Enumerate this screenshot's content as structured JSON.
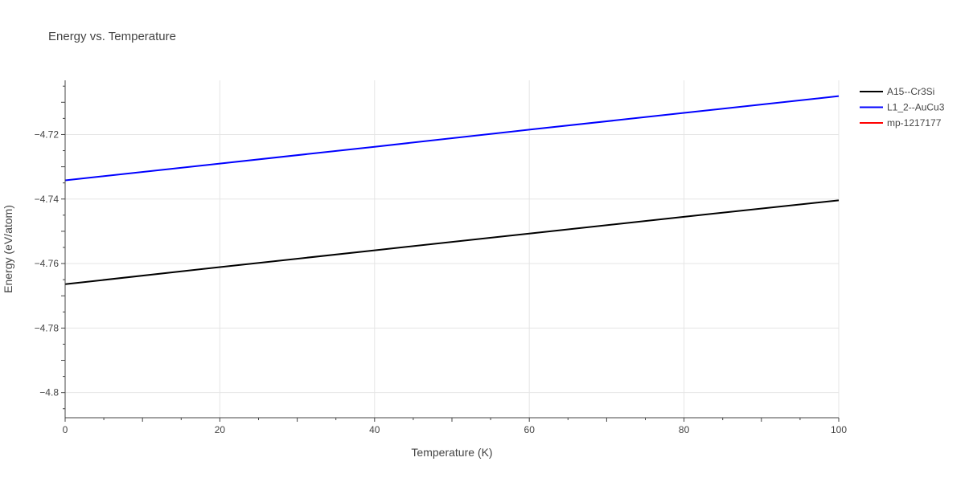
{
  "chart_data": {
    "type": "line",
    "title": "Energy vs. Temperature",
    "xlabel": "Temperature (K)",
    "ylabel": "Energy (eV/atom)",
    "xlim": [
      0,
      100
    ],
    "ylim": [
      -4.8078,
      -4.7032
    ],
    "x_ticks": [
      0,
      20,
      40,
      60,
      80,
      100
    ],
    "x_tick_labels": [
      "0",
      "20",
      "40",
      "60",
      "80",
      "100"
    ],
    "y_ticks": [
      -4.72,
      -4.74,
      -4.76,
      -4.78,
      -4.8
    ],
    "y_tick_labels": [
      "−4.72",
      "−4.74",
      "−4.76",
      "−4.78",
      "−4.8"
    ],
    "grid": true,
    "legend_position": "top-right outside",
    "series": [
      {
        "name": "A15--Cr3Si",
        "color": "#000000",
        "x": [
          0,
          20,
          40,
          60,
          80,
          100
        ],
        "y": [
          -4.7664,
          -4.7611,
          -4.7559,
          -4.7507,
          -4.7455,
          -4.7404
        ]
      },
      {
        "name": "L1_2--AuCu3",
        "color": "#0000ff",
        "x": [
          0,
          20,
          40,
          60,
          80,
          100
        ],
        "y": [
          -4.7342,
          -4.729,
          -4.7238,
          -4.7185,
          -4.7133,
          -4.7081
        ]
      },
      {
        "name": "mp-1217177",
        "color": "#ff0000",
        "x": [],
        "y": []
      }
    ]
  }
}
